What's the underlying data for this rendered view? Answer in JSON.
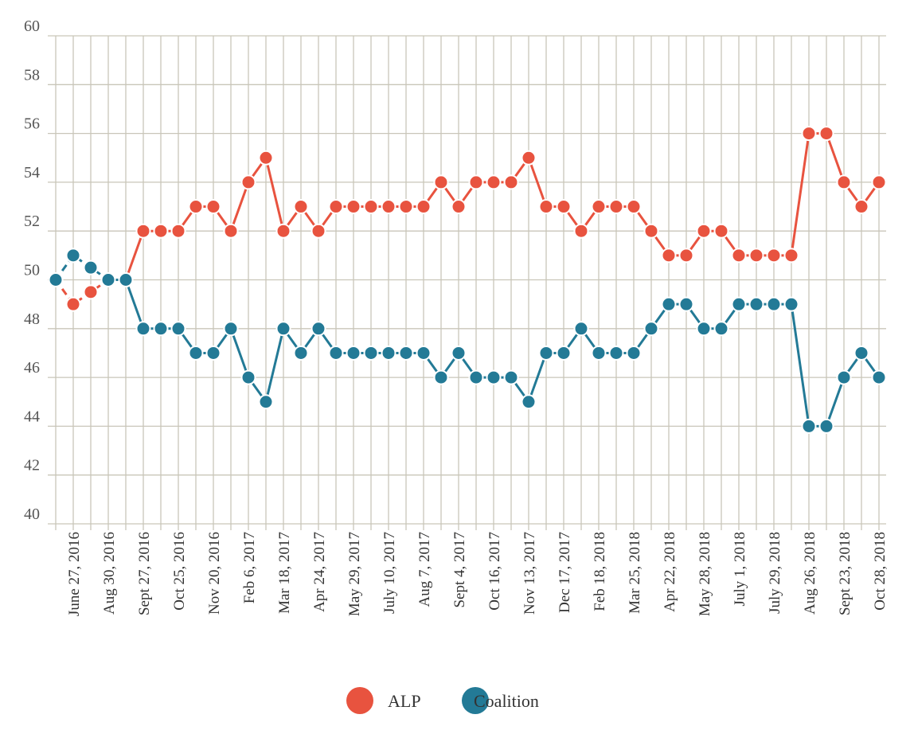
{
  "chart_data": {
    "type": "line",
    "title": "",
    "xlabel": "",
    "ylabel": "",
    "ylim": [
      40,
      60
    ],
    "yticks": [
      40,
      42,
      44,
      46,
      48,
      50,
      52,
      54,
      56,
      58,
      60
    ],
    "grid": true,
    "legend_position": "bottom-center",
    "x_tick_labels": [
      "June 27, 2016",
      "Aug 30, 2016",
      "Sept 27, 2016",
      "Oct 25, 2016",
      "Nov 20, 2016",
      "Feb 6, 2017",
      "Mar 18, 2017",
      "Apr 24, 2017",
      "May 29, 2017",
      "July 10, 2017",
      "Aug 7, 2017",
      "Sept 4, 2017",
      "Oct 16, 2017",
      "Nov 13, 2017",
      "Dec 17, 2017",
      "Feb 18, 2018",
      "Mar 25, 2018",
      "Apr 22, 2018",
      "May 28, 2018",
      "July 1, 2018",
      "July 29, 2018",
      "Aug 26, 2018",
      "Sept 23, 2018",
      "Oct 28, 2018"
    ],
    "dashed_until_index": 4,
    "series": [
      {
        "name": "ALP",
        "color": "#e8533f",
        "values": [
          50,
          49,
          49.5,
          50,
          50,
          52,
          52,
          52,
          53,
          53,
          52,
          54,
          55,
          52,
          53,
          52,
          53,
          53,
          53,
          53,
          53,
          53,
          54,
          53,
          54,
          54,
          54,
          55,
          53,
          53,
          52,
          53,
          53,
          53,
          52,
          51,
          51,
          52,
          52,
          51,
          51,
          51,
          51,
          56,
          56,
          54,
          53,
          54
        ]
      },
      {
        "name": "Coalition",
        "color": "#237a96",
        "values": [
          50,
          51,
          50.5,
          50,
          50,
          48,
          48,
          48,
          47,
          47,
          48,
          46,
          45,
          48,
          47,
          48,
          47,
          47,
          47,
          47,
          47,
          47,
          46,
          47,
          46,
          46,
          46,
          45,
          47,
          47,
          48,
          47,
          47,
          47,
          48,
          49,
          49,
          48,
          48,
          49,
          49,
          49,
          49,
          44,
          44,
          46,
          47,
          46
        ]
      }
    ]
  },
  "colors": {
    "grid": "#c9c6b9",
    "axis_text": "#555555"
  }
}
